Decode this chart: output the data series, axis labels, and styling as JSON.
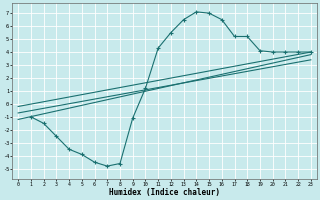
{
  "xlabel": "Humidex (Indice chaleur)",
  "bg_color": "#c8eaec",
  "grid_color": "#ffffff",
  "line_color": "#1a7070",
  "xlim": [
    -0.5,
    23.5
  ],
  "ylim": [
    -5.8,
    7.8
  ],
  "xticks": [
    0,
    1,
    2,
    3,
    4,
    5,
    6,
    7,
    8,
    9,
    10,
    11,
    12,
    13,
    14,
    15,
    16,
    17,
    18,
    19,
    20,
    21,
    22,
    23
  ],
  "yticks": [
    -5,
    -4,
    -3,
    -2,
    -1,
    0,
    1,
    2,
    3,
    4,
    5,
    6,
    7
  ],
  "curve1_x": [
    1,
    2,
    3,
    4,
    5,
    6,
    7,
    8,
    9,
    10,
    11,
    12,
    13,
    14,
    15,
    16,
    17,
    18,
    19,
    20,
    21,
    22,
    23
  ],
  "curve1_y": [
    -1.0,
    -1.5,
    -2.5,
    -3.5,
    -3.9,
    -4.5,
    -4.8,
    -4.6,
    -1.1,
    1.2,
    4.3,
    5.5,
    6.5,
    7.1,
    7.0,
    6.5,
    5.2,
    5.2,
    4.1,
    4.0,
    4.0,
    4.0,
    4.0
  ],
  "line2_x": [
    0,
    23
  ],
  "line2_y": [
    -1.2,
    3.8
  ],
  "line3_x": [
    0,
    23
  ],
  "line3_y": [
    -0.7,
    3.4
  ],
  "line4_x": [
    0,
    23
  ],
  "line4_y": [
    -0.2,
    4.0
  ]
}
